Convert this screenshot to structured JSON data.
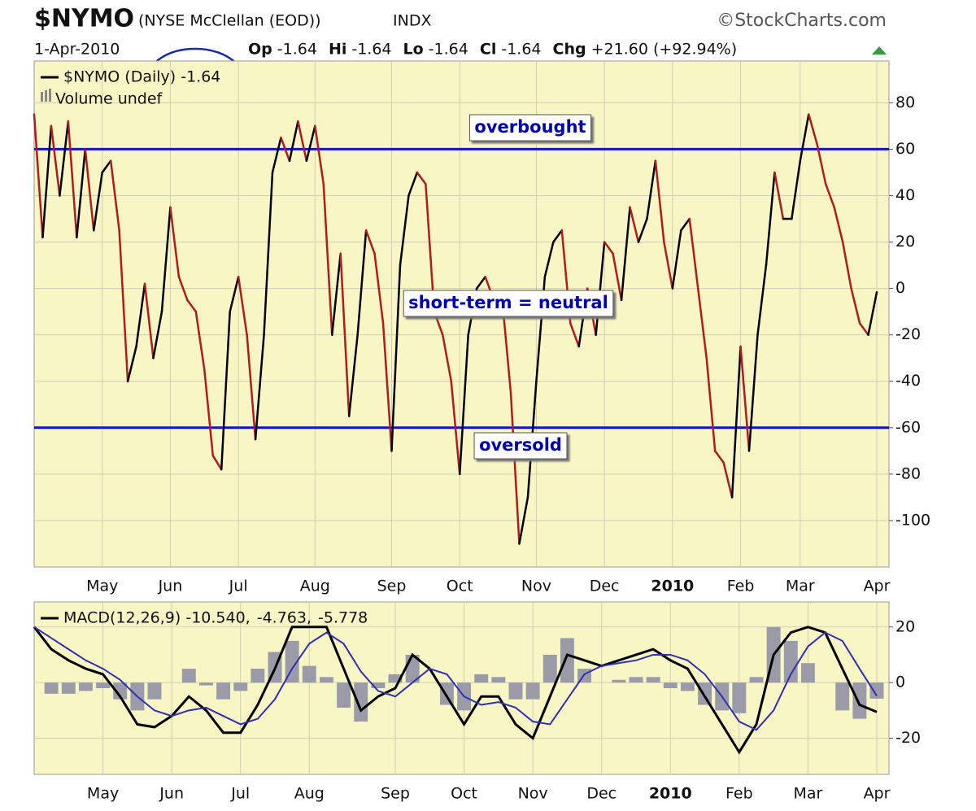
{
  "header": {
    "symbol": "$NYMO",
    "description": "(NYSE McClellan (EOD))",
    "exchange": "INDX",
    "source": "©StockCharts.com",
    "date": "1-Apr-2010",
    "quote": [
      [
        "Op",
        "-1.64"
      ],
      [
        "Hi",
        "-1.64"
      ],
      [
        "Lo",
        "-1.64"
      ],
      [
        "Cl",
        "-1.64"
      ],
      [
        "Chg",
        "+21.60 (+92.94%)"
      ]
    ]
  },
  "chart_data": [
    {
      "type": "line",
      "ylim": [
        -120,
        98
      ],
      "yticks": [
        -100,
        -80,
        -60,
        -40,
        -20,
        0,
        20,
        40,
        60,
        80
      ],
      "grid": true,
      "background": "#f8f6c4",
      "hlines": [
        60,
        -60
      ],
      "hline_color": "#0a14c8",
      "annotations": [
        "overbought",
        "short-term = neutral",
        "oversold"
      ],
      "volume_label": "Volume undef",
      "categories": [
        null,
        null,
        null,
        null,
        null,
        null,
        null,
        null,
        "May",
        null,
        null,
        null,
        null,
        null,
        null,
        null,
        "Jun",
        null,
        null,
        null,
        null,
        null,
        null,
        null,
        "Jul",
        null,
        null,
        null,
        null,
        null,
        null,
        null,
        null,
        "Aug",
        null,
        null,
        null,
        null,
        null,
        null,
        null,
        null,
        "Sep",
        null,
        null,
        null,
        null,
        null,
        null,
        null,
        "Oct",
        null,
        null,
        null,
        null,
        null,
        null,
        null,
        null,
        "Nov",
        null,
        null,
        null,
        null,
        null,
        null,
        null,
        "Dec",
        null,
        null,
        null,
        null,
        null,
        null,
        null,
        "2010",
        null,
        null,
        null,
        null,
        null,
        null,
        null,
        "Feb",
        null,
        null,
        null,
        null,
        null,
        null,
        "Mar",
        null,
        null,
        null,
        null,
        null,
        null,
        null,
        null,
        "Apr"
      ],
      "series": [
        {
          "name": "$NYMO (Daily) -1.64",
          "color": "#000000",
          "up_color": "#000000",
          "down_color": "#b01c1c",
          "values": [
            75,
            22,
            70,
            40,
            72,
            22,
            60,
            25,
            50,
            55,
            25,
            -40,
            -25,
            2,
            -30,
            -10,
            35,
            5,
            -5,
            -10,
            -35,
            -72,
            -78,
            -10,
            5,
            -20,
            -65,
            -20,
            50,
            65,
            55,
            72,
            55,
            70,
            45,
            -20,
            15,
            -55,
            -20,
            25,
            15,
            -15,
            -70,
            10,
            40,
            50,
            45,
            -10,
            -20,
            -40,
            -80,
            -20,
            0,
            5,
            -5,
            -5,
            -45,
            -110,
            -90,
            -40,
            5,
            20,
            25,
            -15,
            -25,
            0,
            -20,
            20,
            15,
            -5,
            35,
            20,
            30,
            55,
            20,
            0,
            25,
            30,
            0,
            -30,
            -70,
            -75,
            -90,
            -25,
            -70,
            -20,
            10,
            50,
            30,
            30,
            55,
            75,
            62,
            45,
            35,
            20,
            0,
            -15,
            -20,
            -1.64
          ]
        }
      ]
    },
    {
      "type": "line",
      "ylim": [
        -33,
        29
      ],
      "yticks": [
        -20,
        0,
        20
      ],
      "grid": true,
      "background": "#f8f6c4",
      "categories": [
        null,
        null,
        null,
        null,
        "May",
        null,
        null,
        null,
        "Jun",
        null,
        null,
        null,
        "Jul",
        null,
        null,
        null,
        "Aug",
        null,
        null,
        null,
        null,
        "Sep",
        null,
        null,
        null,
        "Oct",
        null,
        null,
        null,
        "Nov",
        null,
        null,
        null,
        "Dec",
        null,
        null,
        null,
        "2010",
        null,
        null,
        null,
        "Feb",
        null,
        null,
        null,
        "Mar",
        null,
        null,
        null,
        "Apr"
      ],
      "series": [
        {
          "name": "MACD(12,26,9) -10.540,",
          "color": "#000000",
          "values": [
            20,
            12,
            8,
            5,
            3,
            -5,
            -15,
            -16,
            -12,
            -5,
            -10,
            -18,
            -18,
            -8,
            5,
            20,
            20,
            20,
            5,
            -10,
            -5,
            -2,
            10,
            5,
            -5,
            -15,
            -5,
            -5,
            -15,
            -20,
            -5,
            10,
            8,
            6,
            8,
            10,
            12,
            8,
            5,
            -5,
            -15,
            -25,
            -15,
            10,
            18,
            20,
            18,
            5,
            -8,
            -10.54
          ]
        },
        {
          "name": "-4.763,",
          "color": "#3030b0",
          "values": [
            20,
            16,
            12,
            8,
            5,
            1,
            -5,
            -10,
            -12,
            -10,
            -9,
            -12,
            -15,
            -13,
            -6,
            5,
            14,
            18,
            14,
            4,
            -3,
            -5,
            0,
            5,
            3,
            -5,
            -8,
            -7,
            -9,
            -14,
            -15,
            -6,
            3,
            6,
            7,
            8,
            10,
            10,
            8,
            3,
            -5,
            -14,
            -17,
            -10,
            3,
            13,
            18,
            15,
            5,
            -4.763
          ]
        },
        {
          "name": "-5.778",
          "color": "#9a9aa8",
          "type": "bar",
          "values": [
            0,
            -4,
            -4,
            -3,
            -2,
            -6,
            -10,
            -6,
            0,
            5,
            -1,
            -6,
            -3,
            5,
            11,
            15,
            6,
            2,
            -9,
            -14,
            -2,
            3,
            10,
            0,
            -8,
            -10,
            3,
            2,
            -6,
            -6,
            10,
            16,
            5,
            0,
            1,
            2,
            2,
            -2,
            -3,
            -8,
            -10,
            -11,
            2,
            20,
            15,
            7,
            0,
            -10,
            -13,
            -5.778
          ]
        }
      ]
    }
  ]
}
